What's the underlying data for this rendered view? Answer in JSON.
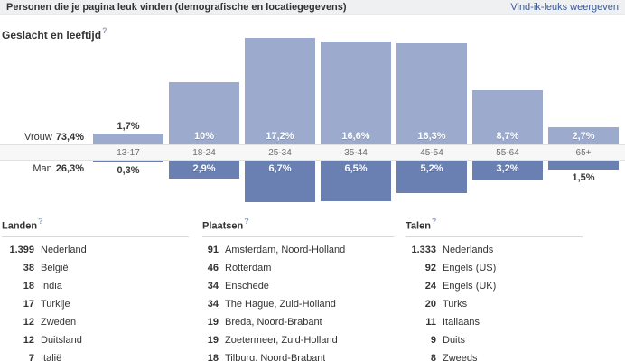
{
  "header": {
    "title": "Personen die je pagina leuk vinden (demografische en locatiegegevens)",
    "link_label": "Vind-ik-leuks weergeven"
  },
  "section": {
    "title": "Geslacht en leeftijd",
    "help": "?"
  },
  "chart_data": {
    "type": "bar",
    "title": "Geslacht en leeftijd",
    "layout": "diverging pyramid: female bars above centered age axis, male bars below",
    "unit": "%",
    "categories": [
      "13-17",
      "18-24",
      "25-34",
      "35-44",
      "45-54",
      "55-64",
      "65+"
    ],
    "series": [
      {
        "name": "Vrouw",
        "total_label": "73,4%",
        "color": "#9baacd",
        "values": [
          1.7,
          10,
          17.2,
          16.6,
          16.3,
          8.7,
          2.7
        ],
        "value_labels": [
          "1,7%",
          "10%",
          "17,2%",
          "16,6%",
          "16,3%",
          "8,7%",
          "2,7%"
        ]
      },
      {
        "name": "Man",
        "total_label": "26,3%",
        "color": "#6a80b3",
        "values": [
          0.3,
          2.9,
          6.7,
          6.5,
          5.2,
          3.2,
          1.5
        ],
        "value_labels": [
          "0,3%",
          "2,9%",
          "6,7%",
          "6,5%",
          "5,2%",
          "3,2%",
          "1,5%"
        ]
      }
    ]
  },
  "lists": [
    {
      "title": "Landen",
      "help": "?",
      "rows": [
        {
          "count": "1.399",
          "label": "Nederland"
        },
        {
          "count": "38",
          "label": "België"
        },
        {
          "count": "18",
          "label": "India"
        },
        {
          "count": "17",
          "label": "Turkije"
        },
        {
          "count": "12",
          "label": "Zweden"
        },
        {
          "count": "12",
          "label": "Duitsland"
        },
        {
          "count": "7",
          "label": "Italië"
        }
      ]
    },
    {
      "title": "Plaatsen",
      "help": "?",
      "rows": [
        {
          "count": "91",
          "label": "Amsterdam, Noord-Holland"
        },
        {
          "count": "46",
          "label": "Rotterdam"
        },
        {
          "count": "34",
          "label": "Enschede"
        },
        {
          "count": "34",
          "label": "The Hague, Zuid-Holland"
        },
        {
          "count": "19",
          "label": "Breda, Noord-Brabant"
        },
        {
          "count": "19",
          "label": "Zoetermeer, Zuid-Holland"
        },
        {
          "count": "18",
          "label": "Tilburg, Noord-Brabant"
        }
      ]
    },
    {
      "title": "Talen",
      "help": "?",
      "rows": [
        {
          "count": "1.333",
          "label": "Nederlands"
        },
        {
          "count": "92",
          "label": "Engels (US)"
        },
        {
          "count": "24",
          "label": "Engels (UK)"
        },
        {
          "count": "20",
          "label": "Turks"
        },
        {
          "count": "11",
          "label": "Italiaans"
        },
        {
          "count": "9",
          "label": "Duits"
        },
        {
          "count": "8",
          "label": "Zweeds"
        }
      ]
    }
  ]
}
